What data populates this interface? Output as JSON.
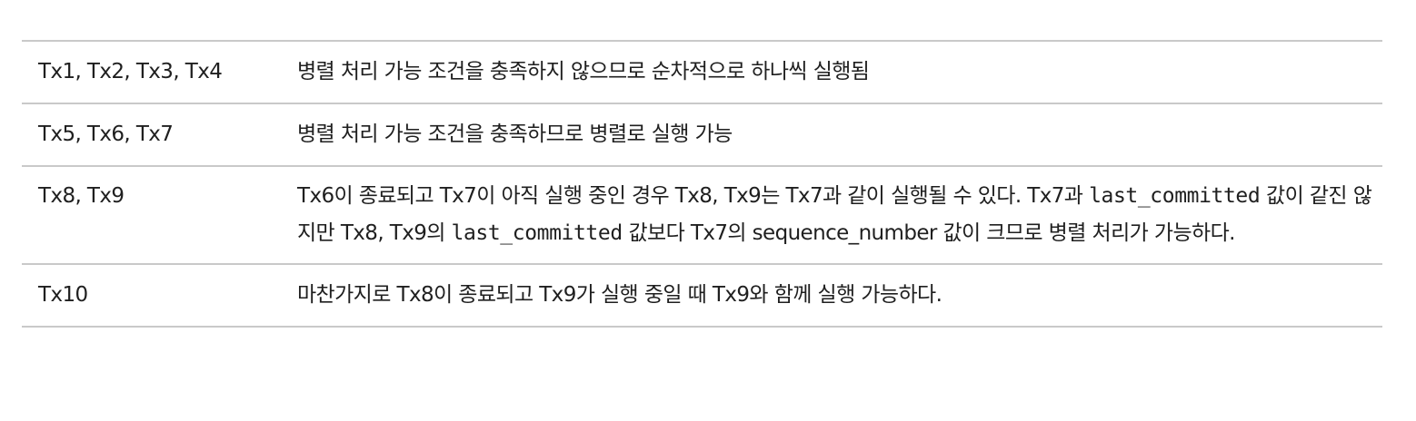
{
  "rows": [
    {
      "tx": "Tx1, Tx2, Tx3, Tx4",
      "description": "병렬 처리 가능 조건을 충족하지 않으므로 순차적으로 하나씩 실행됨"
    },
    {
      "tx": "Tx5, Tx6, Tx7",
      "description": "병렬 처리 가능 조건을 충족하므로 병렬로 실행 가능"
    },
    {
      "tx": "Tx8, Tx9",
      "description_parts": [
        "Tx6이 종료되고 Tx7이 아직 실행 중인 경우 Tx8, Tx9는 Tx7과 같이 실행될 수 있다. Tx7과 ",
        "last_committed",
        " 값이 같진 않지만 Tx8, Tx9의 ",
        "last_committed",
        " 값보다 Tx7의 sequence_number 값이 크므로 병렬 처리가 가능하다."
      ]
    },
    {
      "tx": "Tx10",
      "description": "마찬가지로 Tx8이 종료되고 Tx9가 실행 중일 때 Tx9와 함께 실행 가능하다."
    }
  ]
}
